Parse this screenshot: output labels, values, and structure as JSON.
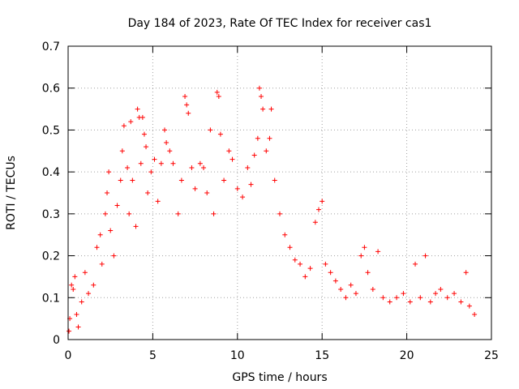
{
  "chart_data": {
    "type": "scatter",
    "title": "Day 184 of 2023, Rate Of TEC Index for receiver cas1",
    "xlabel": "GPS time / hours",
    "ylabel": "ROTI / TECUs",
    "xlim": [
      0,
      25
    ],
    "ylim": [
      0,
      0.7
    ],
    "x_ticks": [
      "0",
      "5",
      "10",
      "15",
      "20",
      "25"
    ],
    "y_ticks": [
      "0",
      "0.1",
      "0.2",
      "0.3",
      "0.4",
      "0.5",
      "0.6",
      "0.7"
    ],
    "grid": true,
    "marker": "plus",
    "color": "#ff0000",
    "series": [
      {
        "name": "ROTI",
        "points": [
          [
            0.05,
            0.02
          ],
          [
            0.1,
            0.05
          ],
          [
            0.2,
            0.13
          ],
          [
            0.3,
            0.12
          ],
          [
            0.4,
            0.15
          ],
          [
            0.5,
            0.06
          ],
          [
            0.6,
            0.03
          ],
          [
            0.8,
            0.09
          ],
          [
            1.0,
            0.16
          ],
          [
            1.2,
            0.11
          ],
          [
            1.5,
            0.13
          ],
          [
            1.7,
            0.22
          ],
          [
            1.9,
            0.25
          ],
          [
            2.0,
            0.18
          ],
          [
            2.2,
            0.3
          ],
          [
            2.3,
            0.35
          ],
          [
            2.4,
            0.4
          ],
          [
            2.5,
            0.26
          ],
          [
            2.7,
            0.2
          ],
          [
            2.9,
            0.32
          ],
          [
            3.1,
            0.38
          ],
          [
            3.2,
            0.45
          ],
          [
            3.3,
            0.51
          ],
          [
            3.5,
            0.41
          ],
          [
            3.6,
            0.3
          ],
          [
            3.7,
            0.52
          ],
          [
            3.8,
            0.38
          ],
          [
            4.0,
            0.27
          ],
          [
            4.1,
            0.55
          ],
          [
            4.2,
            0.53
          ],
          [
            4.3,
            0.42
          ],
          [
            4.4,
            0.53
          ],
          [
            4.5,
            0.49
          ],
          [
            4.6,
            0.46
          ],
          [
            4.7,
            0.35
          ],
          [
            4.9,
            0.4
          ],
          [
            5.1,
            0.43
          ],
          [
            5.3,
            0.33
          ],
          [
            5.5,
            0.42
          ],
          [
            5.7,
            0.5
          ],
          [
            5.8,
            0.47
          ],
          [
            6.0,
            0.45
          ],
          [
            6.2,
            0.42
          ],
          [
            6.5,
            0.3
          ],
          [
            6.7,
            0.38
          ],
          [
            6.9,
            0.58
          ],
          [
            7.0,
            0.56
          ],
          [
            7.1,
            0.54
          ],
          [
            7.3,
            0.41
          ],
          [
            7.5,
            0.36
          ],
          [
            7.8,
            0.42
          ],
          [
            8.0,
            0.41
          ],
          [
            8.2,
            0.35
          ],
          [
            8.4,
            0.5
          ],
          [
            8.6,
            0.3
          ],
          [
            8.8,
            0.59
          ],
          [
            8.9,
            0.58
          ],
          [
            9.0,
            0.49
          ],
          [
            9.2,
            0.38
          ],
          [
            9.5,
            0.45
          ],
          [
            9.7,
            0.43
          ],
          [
            10.0,
            0.36
          ],
          [
            10.3,
            0.34
          ],
          [
            10.6,
            0.41
          ],
          [
            10.8,
            0.37
          ],
          [
            11.0,
            0.44
          ],
          [
            11.2,
            0.48
          ],
          [
            11.3,
            0.6
          ],
          [
            11.4,
            0.58
          ],
          [
            11.5,
            0.55
          ],
          [
            11.7,
            0.45
          ],
          [
            11.9,
            0.48
          ],
          [
            12.0,
            0.55
          ],
          [
            12.2,
            0.38
          ],
          [
            12.5,
            0.3
          ],
          [
            12.8,
            0.25
          ],
          [
            13.1,
            0.22
          ],
          [
            13.4,
            0.19
          ],
          [
            13.7,
            0.18
          ],
          [
            14.0,
            0.15
          ],
          [
            14.3,
            0.17
          ],
          [
            14.6,
            0.28
          ],
          [
            14.8,
            0.31
          ],
          [
            15.0,
            0.33
          ],
          [
            15.2,
            0.18
          ],
          [
            15.5,
            0.16
          ],
          [
            15.8,
            0.14
          ],
          [
            16.1,
            0.12
          ],
          [
            16.4,
            0.1
          ],
          [
            16.7,
            0.13
          ],
          [
            17.0,
            0.11
          ],
          [
            17.3,
            0.2
          ],
          [
            17.5,
            0.22
          ],
          [
            17.7,
            0.16
          ],
          [
            18.0,
            0.12
          ],
          [
            18.3,
            0.21
          ],
          [
            18.6,
            0.1
          ],
          [
            19.0,
            0.09
          ],
          [
            19.4,
            0.1
          ],
          [
            19.8,
            0.11
          ],
          [
            20.2,
            0.09
          ],
          [
            20.5,
            0.18
          ],
          [
            20.8,
            0.1
          ],
          [
            21.1,
            0.2
          ],
          [
            21.4,
            0.09
          ],
          [
            21.7,
            0.11
          ],
          [
            22.0,
            0.12
          ],
          [
            22.4,
            0.1
          ],
          [
            22.8,
            0.11
          ],
          [
            23.2,
            0.09
          ],
          [
            23.5,
            0.16
          ],
          [
            23.7,
            0.08
          ],
          [
            24.0,
            0.06
          ]
        ]
      }
    ]
  }
}
